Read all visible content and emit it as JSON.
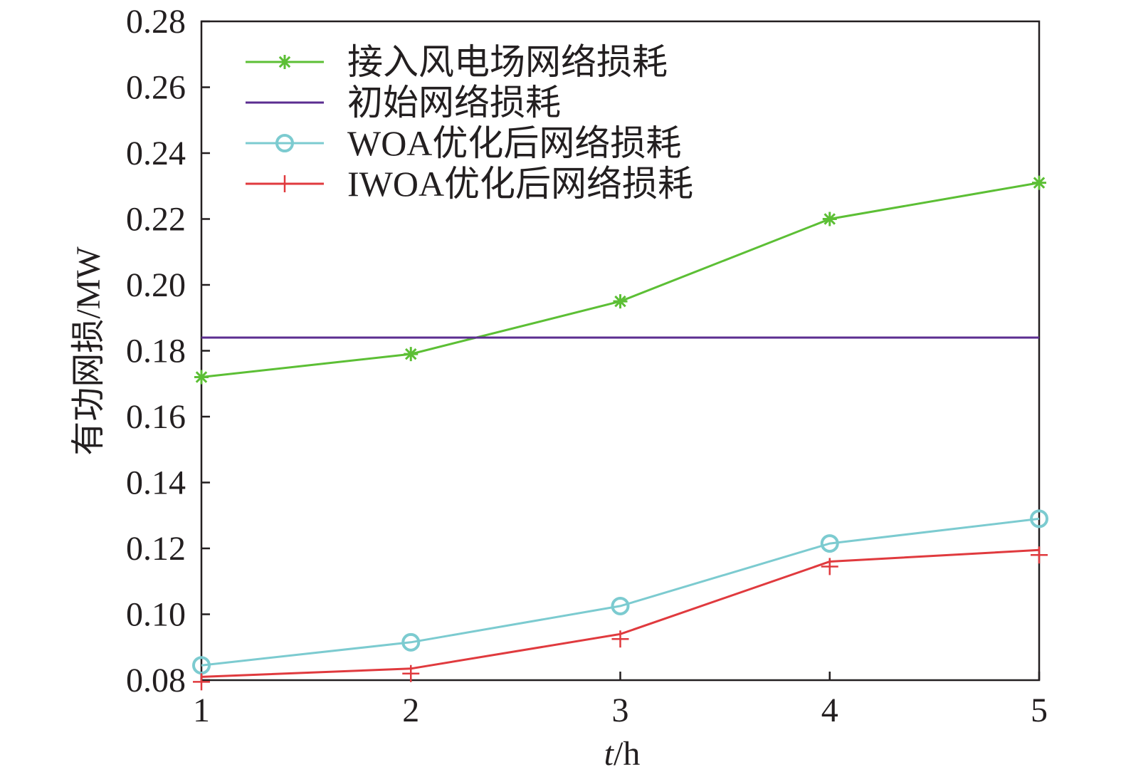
{
  "chart_data": {
    "type": "line",
    "title": "",
    "xlabel_italic": "t",
    "xlabel_rest": "/h",
    "ylabel": "有功网损/MW",
    "x": [
      1,
      2,
      3,
      4,
      5
    ],
    "xlim": [
      1,
      5
    ],
    "ylim": [
      0.08,
      0.28
    ],
    "xticks": [
      "1",
      "2",
      "3",
      "4",
      "5"
    ],
    "yticks": [
      "0.08",
      "0.10",
      "0.12",
      "0.14",
      "0.16",
      "0.18",
      "0.20",
      "0.22",
      "0.24",
      "0.26",
      "0.28"
    ],
    "grid": false,
    "legend_position": "top-left",
    "series": [
      {
        "name": "接入风电场网络损耗",
        "values": [
          0.172,
          0.179,
          0.195,
          0.22,
          0.231
        ],
        "color": "#5cbf35",
        "marker": "asterisk",
        "marker_offset": [
          0,
          0,
          0,
          0,
          0
        ]
      },
      {
        "name": "初始网络损耗",
        "values": [
          0.184,
          0.184,
          0.184,
          0.184,
          0.184
        ],
        "color": "#5b2d90",
        "marker": "none",
        "marker_offset": [
          0,
          0,
          0,
          0,
          0
        ]
      },
      {
        "name": "WOA优化后网络损耗",
        "values": [
          0.0845,
          0.0915,
          0.1025,
          0.1215,
          0.129
        ],
        "color": "#7ccbd0",
        "marker": "circle",
        "marker_offset": [
          0,
          0,
          0,
          0,
          0
        ]
      },
      {
        "name": "IWOA优化后网络损耗",
        "values": [
          0.081,
          0.0835,
          0.094,
          0.116,
          0.1195
        ],
        "color": "#e03a3e",
        "marker": "plus",
        "marker_offset": [
          -0.0015,
          -0.0015,
          -0.0015,
          -0.0015,
          -0.0015
        ]
      }
    ]
  }
}
